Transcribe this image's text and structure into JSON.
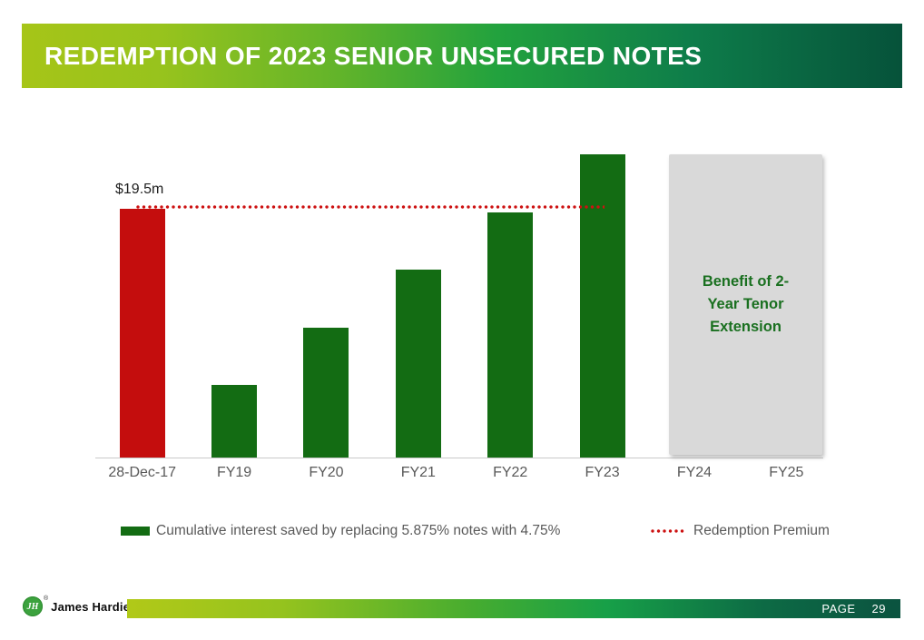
{
  "slide": {
    "title": "REDEMPTION OF 2023 SENIOR UNSECURED NOTES"
  },
  "chart_data": {
    "type": "bar",
    "unit": "USD millions",
    "categories": [
      "28-Dec-17",
      "FY19",
      "FY20",
      "FY21",
      "FY22",
      "FY23",
      "FY24",
      "FY25"
    ],
    "series": [
      {
        "name": "Cumulative interest saved by replacing 5.875% notes with 4.75%",
        "color": "#136c13",
        "values": [
          null,
          5.7,
          10.2,
          14.7,
          19.2,
          23.8,
          null,
          null
        ]
      },
      {
        "name": "Redemption Premium",
        "color": "#c40d0d",
        "values": [
          19.5,
          null,
          null,
          null,
          null,
          null,
          null,
          null
        ],
        "data_label": "$19.5m"
      }
    ],
    "reference_line": {
      "value": 19.5,
      "style": "dotted",
      "color": "#cd1111"
    },
    "annotation": {
      "text": "Benefit of 2-Year Tenor Extension",
      "lines": [
        "Benefit of 2-",
        "Year Tenor",
        "Extension"
      ],
      "span_categories": [
        "FY24",
        "FY25"
      ],
      "fill": "#d9d9d9",
      "text_color": "#1a7020"
    },
    "ylim": [
      0,
      24.6
    ],
    "grid": false,
    "legend_position": "bottom"
  },
  "footer": {
    "company_name": "James Hardie",
    "logo_monogram": "JH",
    "registered_symbol": "®",
    "page_label": "PAGE",
    "page_number": "29"
  },
  "colors": {
    "header_gradient_left": "#a6c518",
    "header_gradient_mid": "#22a23e",
    "header_gradient_right": "#06523a",
    "bar_green": "#136c13",
    "bar_red": "#c40d0d",
    "annotation_fill": "#d9d9d9",
    "axis_text": "#595959"
  }
}
